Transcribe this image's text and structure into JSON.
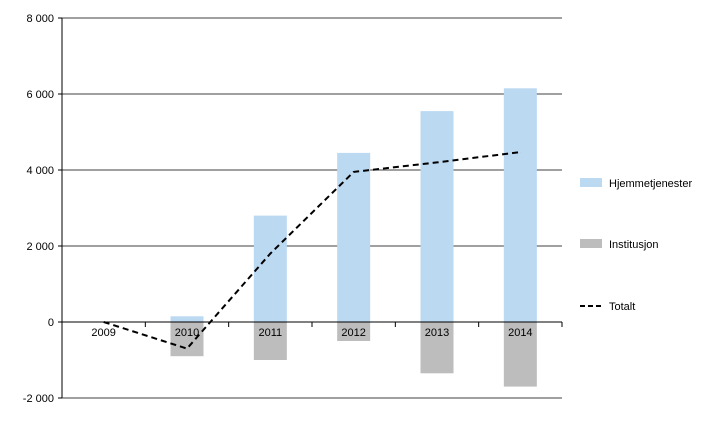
{
  "chart_data": {
    "type": "bar",
    "categories": [
      "2009",
      "2010",
      "2011",
      "2012",
      "2013",
      "2014"
    ],
    "series": [
      {
        "name": "Hjemmetjenester",
        "kind": "bar",
        "color": "#bcd9f2",
        "values": [
          0,
          150,
          2800,
          4450,
          5550,
          6150
        ]
      },
      {
        "name": "Institusjon",
        "kind": "bar",
        "color": "#bdbdbd",
        "values": [
          0,
          -900,
          -1000,
          -500,
          -1350,
          -1700
        ]
      },
      {
        "name": "Totalt",
        "kind": "line",
        "style": "dashed",
        "color": "#000000",
        "values": [
          0,
          -700,
          1800,
          3950,
          4200,
          4470
        ]
      }
    ],
    "yticks": [
      "8 000",
      "6 000",
      "4 000",
      "2 000",
      "0",
      "-2 000"
    ],
    "ylim": [
      -2000,
      8000
    ],
    "title": "",
    "xlabel": "",
    "ylabel": "",
    "grid": true,
    "legend": "right"
  }
}
